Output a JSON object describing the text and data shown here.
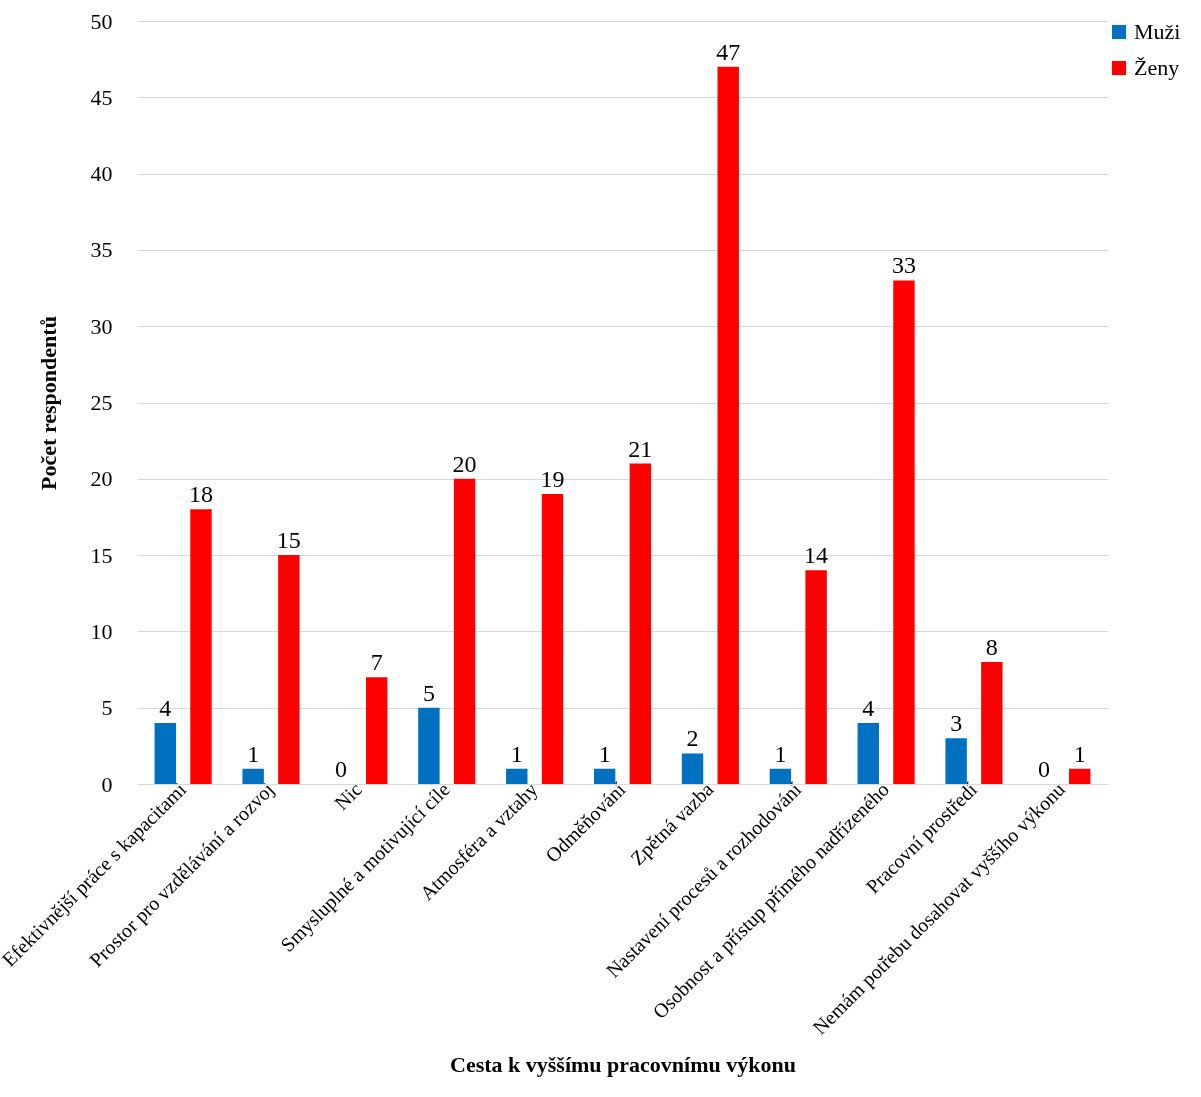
{
  "chart_data": {
    "type": "bar",
    "xlabel": "Cesta k vyššímu pracovnímu výkonu",
    "ylabel": "Počet respondentů",
    "categories": [
      "Efektivnější práce s kapacitami",
      "Prostor pro vzdělávání a rozvoj",
      "Nic",
      "Smysluplné a motivující cíle",
      "Atmosféra a vztahy",
      "Odměňování",
      "Zpětná vazba",
      "Nastavení procesů a rozhodování",
      "Osobnost a přístup přímého nadřízeného",
      "Pracovní prostředí",
      "Nemám potřebu dosahovat vyššího výkonu"
    ],
    "series": [
      {
        "name": "Muži",
        "color": "#0070c0",
        "values": [
          4,
          1,
          0,
          5,
          1,
          1,
          2,
          1,
          4,
          3,
          0
        ]
      },
      {
        "name": "Ženy",
        "color": "#ff0000",
        "values": [
          18,
          15,
          7,
          20,
          19,
          21,
          47,
          14,
          33,
          8,
          1
        ]
      }
    ],
    "ylim": [
      0,
      50
    ],
    "yticks": [
      0,
      5,
      10,
      15,
      20,
      25,
      30,
      35,
      40,
      45,
      50
    ],
    "grid": "y",
    "legend": "right",
    "data_labels": true
  }
}
